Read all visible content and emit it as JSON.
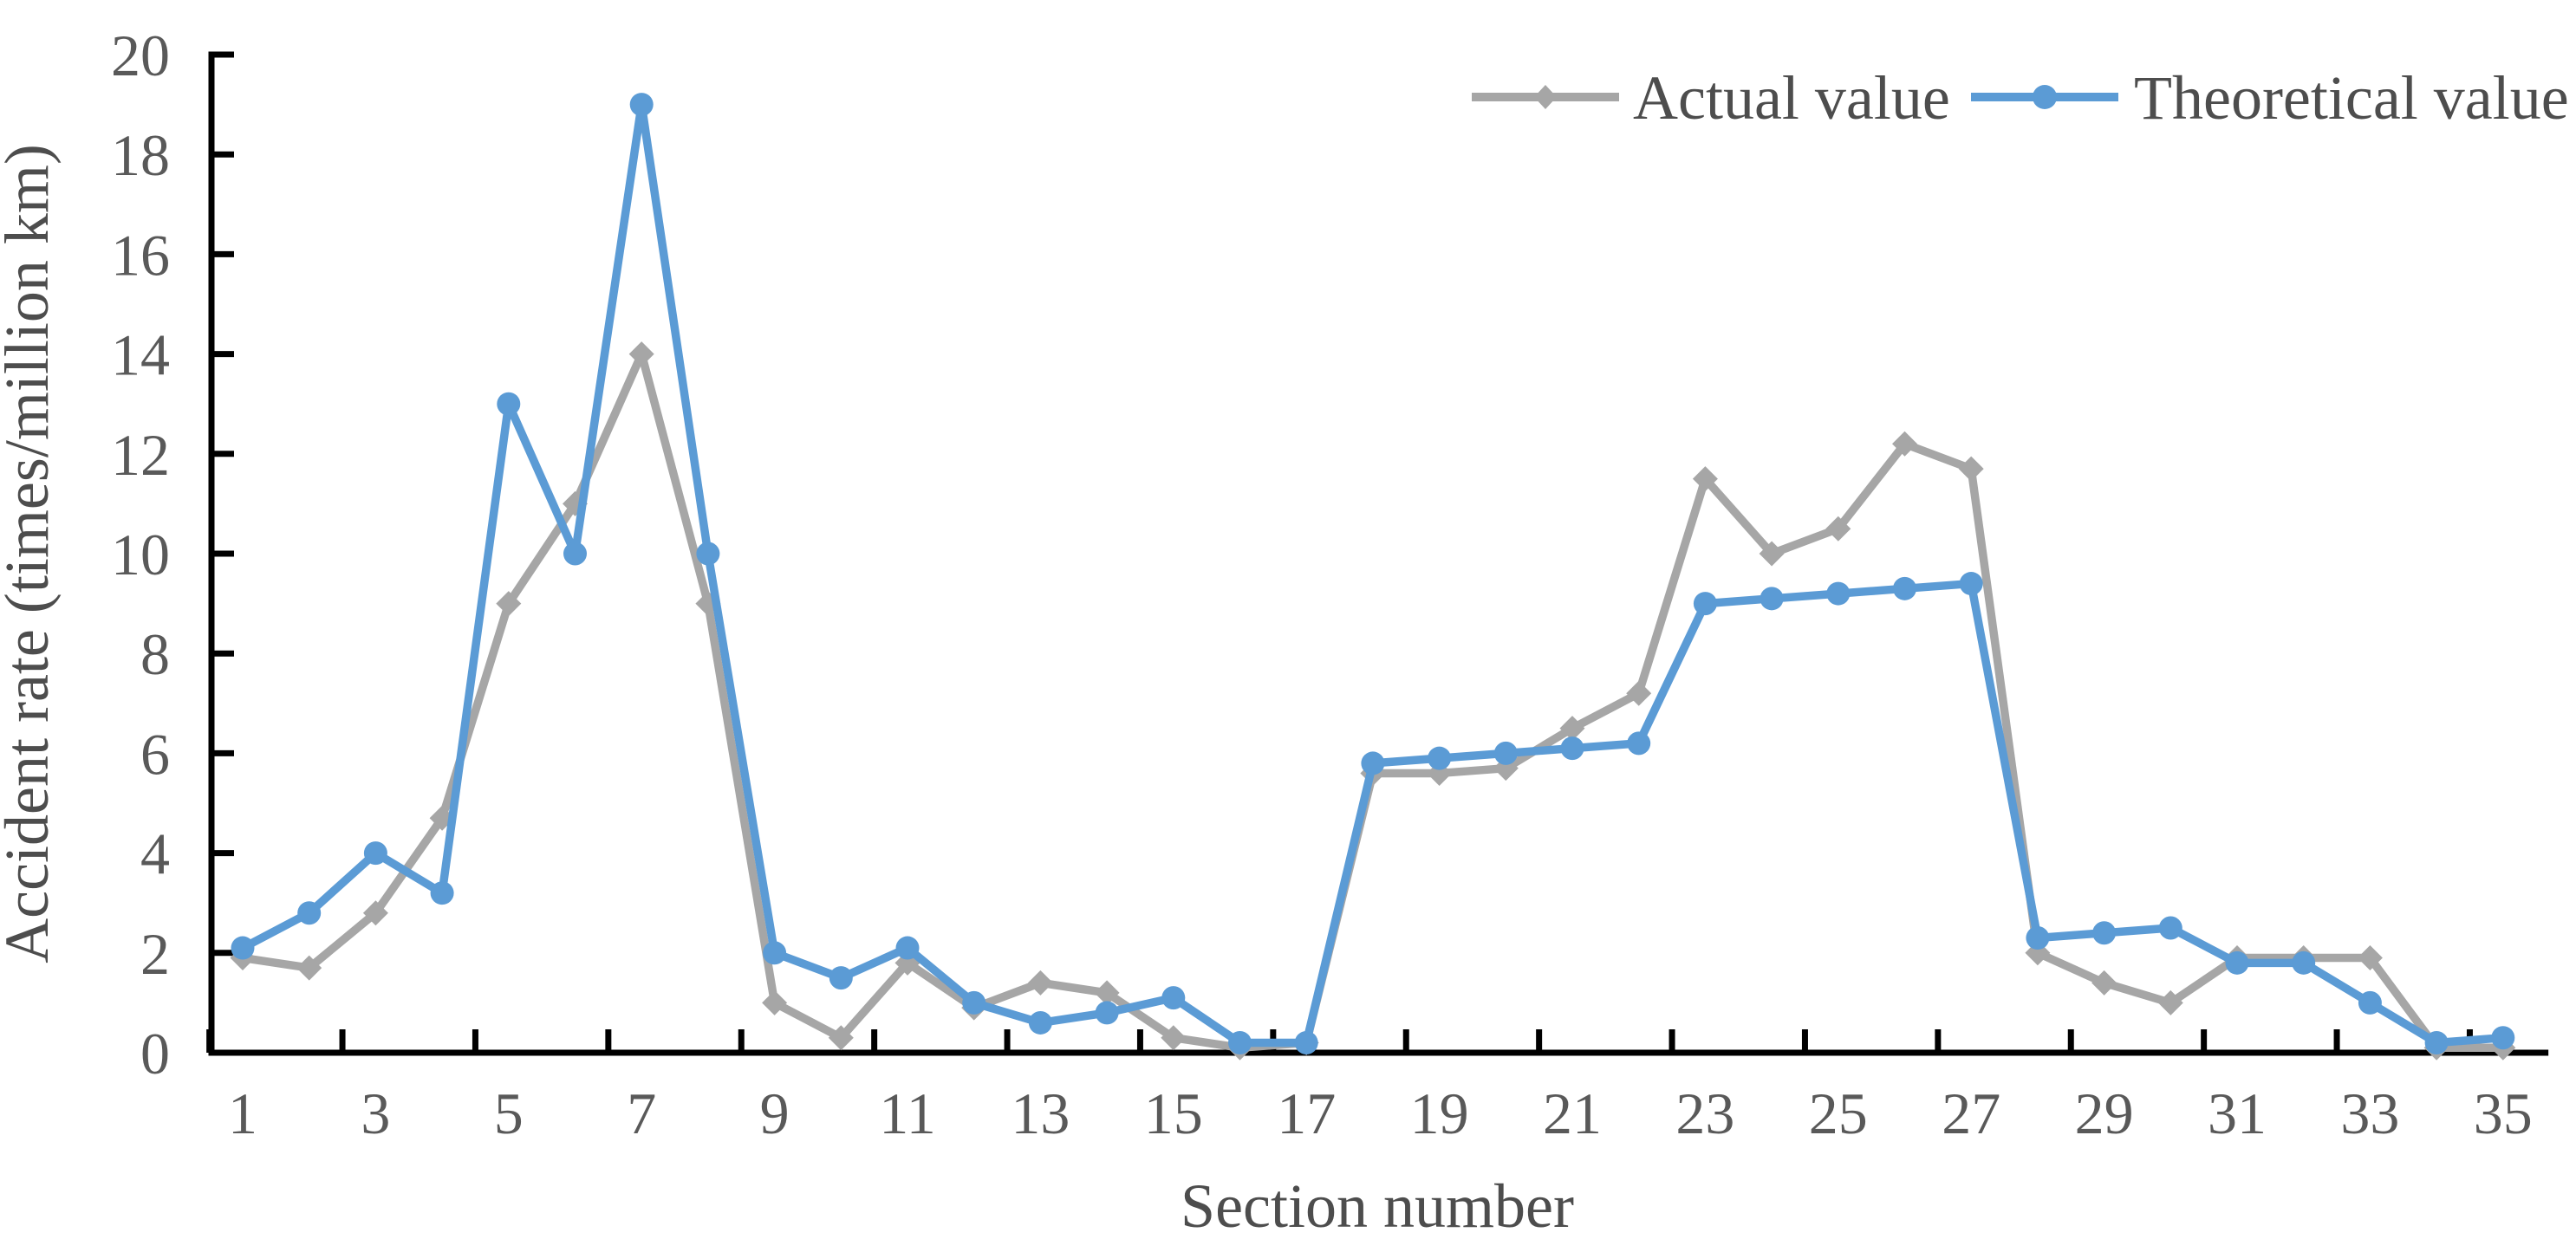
{
  "chart_data": {
    "type": "line",
    "title": "",
    "xlabel": "Section number",
    "ylabel": "Accident rate (times/million km)",
    "categories": [
      1,
      2,
      3,
      4,
      5,
      6,
      7,
      8,
      9,
      10,
      11,
      12,
      13,
      14,
      15,
      16,
      17,
      18,
      19,
      20,
      21,
      22,
      23,
      24,
      25,
      26,
      27,
      28,
      29,
      30,
      31,
      32,
      33,
      34,
      35
    ],
    "x_tick_label_interval": 2,
    "x_tick_labels_shown": [
      "1",
      "3",
      "5",
      "7",
      "9",
      "11",
      "13",
      "15",
      "17",
      "19",
      "21",
      "23",
      "25",
      "27",
      "29",
      "31",
      "33",
      "35"
    ],
    "ylim": [
      0,
      20
    ],
    "y_ticks": [
      0,
      2,
      4,
      6,
      8,
      10,
      12,
      14,
      16,
      18,
      20
    ],
    "grid": false,
    "legend_position": "top-right",
    "series": [
      {
        "name": "Actual value",
        "color": "#A6A6A6",
        "marker": "diamond",
        "values": [
          1.9,
          1.7,
          2.8,
          4.7,
          9.0,
          11.0,
          14.0,
          9.0,
          1.0,
          0.3,
          1.8,
          0.9,
          1.4,
          1.2,
          0.3,
          0.1,
          0.2,
          5.6,
          5.6,
          5.7,
          6.5,
          7.2,
          11.5,
          10.0,
          10.5,
          12.2,
          11.7,
          2.0,
          1.4,
          1.0,
          1.9,
          1.9,
          1.9,
          0.1,
          0.1
        ]
      },
      {
        "name": "Theoretical value",
        "color": "#5B9BD5",
        "marker": "circle",
        "values": [
          2.1,
          2.8,
          4.0,
          3.2,
          13.0,
          10.0,
          19.0,
          10.0,
          2.0,
          1.5,
          2.1,
          1.0,
          0.6,
          0.8,
          1.1,
          0.2,
          0.2,
          5.8,
          5.9,
          6.0,
          6.1,
          6.2,
          9.0,
          9.1,
          9.2,
          9.3,
          9.4,
          2.3,
          2.4,
          2.5,
          1.8,
          1.8,
          1.0,
          0.2,
          0.3
        ]
      }
    ],
    "colors": {
      "axis_line": "#000000",
      "tick_label_text": "#595959",
      "title_text": "#4d4d4d",
      "background": "#ffffff"
    }
  }
}
